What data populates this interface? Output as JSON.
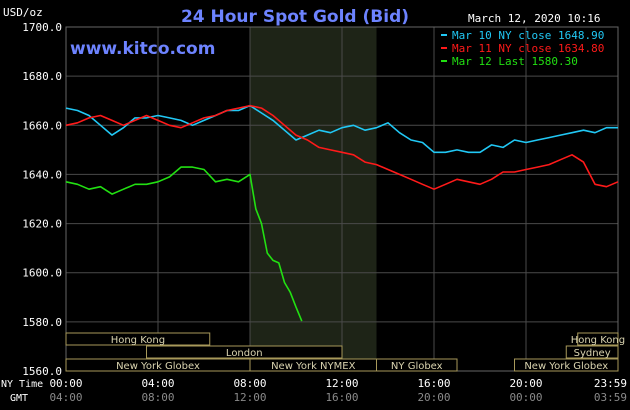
{
  "header": {
    "title": "24 Hour Spot Gold (Bid)",
    "date": "March 12, 2020 10:16",
    "website": "www.kitco.com",
    "units": "USD/oz"
  },
  "axis_captions": {
    "ny_time": "NY Time",
    "gmt": "GMT"
  },
  "colors": {
    "background": "#000000",
    "grid": "#4a4a4a",
    "title": "#6d83ff",
    "website": "#6d83ff",
    "text": "#ffffff",
    "session_fill": "#000000",
    "session_border": "#a7995a",
    "session_text": "#dad4b0",
    "highlight": "#1e2417"
  },
  "sessions": [
    {
      "label": "Hong Kong",
      "row": 0,
      "start": 0.0,
      "end": 6.25
    },
    {
      "label": "Hong Kong",
      "row": 0,
      "start": 22.25,
      "end": 24.0
    },
    {
      "label": "London",
      "row": 1,
      "start": 3.5,
      "end": 12.0
    },
    {
      "label": "Sydney",
      "row": 1,
      "start": 21.75,
      "end": 24.0
    },
    {
      "label": "New York Globex",
      "row": 2,
      "start": 0.0,
      "end": 8.0
    },
    {
      "label": "New York NYMEX",
      "row": 2,
      "start": 8.0,
      "end": 13.5
    },
    {
      "label": "NY Globex",
      "row": 2,
      "start": 13.5,
      "end": 17.0
    },
    {
      "label": "New York Globex",
      "row": 2,
      "start": 19.5,
      "end": 24.0
    }
  ],
  "chart_data": {
    "type": "line",
    "title": "24 Hour Spot Gold (Bid)",
    "ylabel": "USD/oz",
    "ylim": [
      1560,
      1700
    ],
    "xlim": [
      0,
      24
    ],
    "grid": true,
    "legend_position": "top-right",
    "y_ticks": [
      "1700.0",
      "1680.0",
      "1660.0",
      "1640.0",
      "1620.0",
      "1600.0",
      "1580.0",
      "1560.0"
    ],
    "y_tick_values": [
      1700,
      1680,
      1660,
      1640,
      1620,
      1600,
      1580,
      1560
    ],
    "x_ticks_ny": [
      "00:00",
      "04:00",
      "08:00",
      "12:00",
      "16:00",
      "20:00",
      "23:59"
    ],
    "x_ticks_gmt": [
      "04:00",
      "08:00",
      "12:00",
      "16:00",
      "20:00",
      "00:00",
      "03:59"
    ],
    "x_tick_values": [
      0,
      4,
      8,
      12,
      16,
      20,
      24
    ],
    "highlight_range": [
      8.0,
      13.5
    ],
    "series": [
      {
        "name": "Mar 10 NY close 1648.90",
        "color": "#21c8f5",
        "x": [
          0,
          0.5,
          1,
          1.5,
          2,
          2.5,
          3,
          3.5,
          4,
          4.5,
          5,
          5.5,
          6,
          6.5,
          7,
          7.5,
          8,
          8.5,
          9,
          9.5,
          10,
          10.5,
          11,
          11.5,
          12,
          12.5,
          13,
          13.5,
          14,
          14.5,
          15,
          15.5,
          16,
          16.5,
          17,
          17.5,
          18,
          18.5,
          19,
          19.5,
          20,
          20.5,
          21,
          21.5,
          22,
          22.5,
          23,
          23.5,
          24
        ],
        "values": [
          1667,
          1666,
          1664,
          1660,
          1656,
          1659,
          1663,
          1663,
          1664,
          1663,
          1662,
          1660,
          1662,
          1664,
          1666,
          1666,
          1668,
          1665,
          1662,
          1658,
          1654,
          1656,
          1658,
          1657,
          1659,
          1660,
          1658,
          1659,
          1661,
          1657,
          1654,
          1653,
          1649,
          1649,
          1650,
          1649,
          1649,
          1652,
          1651,
          1654,
          1653,
          1654,
          1655,
          1656,
          1657,
          1658,
          1657,
          1659,
          1659
        ]
      },
      {
        "name": "Mar 11 NY close 1634.80",
        "color": "#ff1a1a",
        "x": [
          0,
          0.5,
          1,
          1.5,
          2,
          2.5,
          3,
          3.5,
          4,
          4.5,
          5,
          5.5,
          6,
          6.5,
          7,
          7.5,
          8,
          8.5,
          9,
          9.5,
          10,
          10.5,
          11,
          11.5,
          12,
          12.5,
          13,
          13.5,
          14,
          14.5,
          15,
          15.5,
          16,
          16.5,
          17,
          17.5,
          18,
          18.5,
          19,
          19.5,
          20,
          20.5,
          21,
          21.5,
          22,
          22.5,
          23,
          23.5,
          24
        ],
        "values": [
          1660,
          1661,
          1663,
          1664,
          1662,
          1660,
          1662,
          1664,
          1662,
          1660,
          1659,
          1661,
          1663,
          1664,
          1666,
          1667,
          1668,
          1667,
          1664,
          1660,
          1656,
          1654,
          1651,
          1650,
          1649,
          1648,
          1645,
          1644,
          1642,
          1640,
          1638,
          1636,
          1634,
          1636,
          1638,
          1637,
          1636,
          1638,
          1641,
          1641,
          1642,
          1643,
          1644,
          1646,
          1648,
          1645,
          1636,
          1635,
          1637
        ]
      },
      {
        "name": "Mar 12 Last 1580.30",
        "color": "#22e012",
        "x": [
          0,
          0.5,
          1,
          1.5,
          2,
          2.5,
          3,
          3.5,
          4,
          4.5,
          5,
          5.5,
          6,
          6.5,
          7,
          7.5,
          8,
          8.25,
          8.5,
          8.75,
          9,
          9.25,
          9.5,
          9.75,
          10,
          10.25
        ],
        "values": [
          1637,
          1636,
          1634,
          1635,
          1632,
          1634,
          1636,
          1636,
          1637,
          1639,
          1643,
          1643,
          1642,
          1637,
          1638,
          1637,
          1640,
          1626,
          1620,
          1608,
          1605,
          1604,
          1596,
          1592,
          1586,
          1580.3
        ]
      }
    ]
  }
}
